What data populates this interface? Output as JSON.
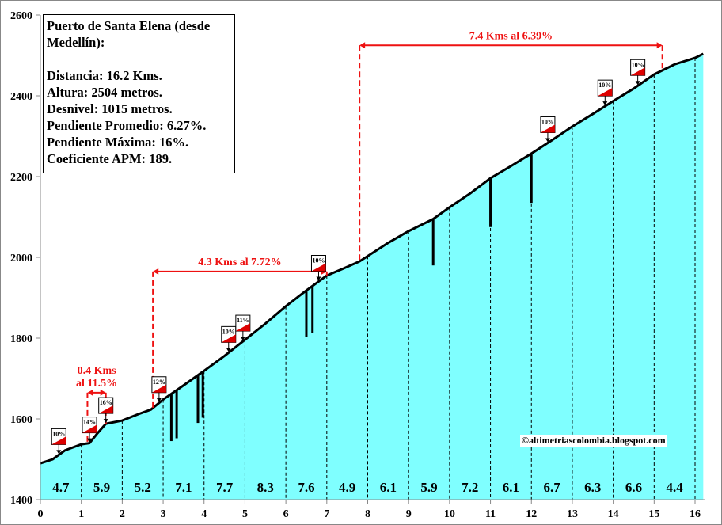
{
  "chart_data": {
    "type": "area",
    "title": "Puerto de Santa Elena (desde Medellín):",
    "info_lines": [
      "Distancia: 16.2 Kms.",
      "Altura:  2504 metros.",
      "Desnivel: 1015 metros.",
      "Pendiente Promedio: 6.27%.",
      "Pendiente Máxima: 16%.",
      "Coeficiente APM: 189."
    ],
    "xlabel": "",
    "ylabel": "",
    "xlim": [
      0,
      16.2
    ],
    "ylim": [
      1400,
      2600
    ],
    "x_ticks": [
      0,
      1,
      2,
      3,
      4,
      5,
      6,
      7,
      8,
      9,
      10,
      11,
      12,
      13,
      14,
      15,
      16
    ],
    "y_ticks": [
      1400,
      1600,
      1800,
      2000,
      2200,
      2400,
      2600
    ],
    "profile": {
      "x": [
        0,
        0.3,
        0.6,
        1,
        1.2,
        1.4,
        1.6,
        2,
        2.4,
        2.7,
        3,
        3.5,
        4,
        4.5,
        5,
        5.5,
        6,
        6.5,
        7,
        7.4,
        7.8,
        8.5,
        9,
        9.6,
        10,
        10.5,
        11,
        11.5,
        12,
        12.5,
        13,
        13.5,
        14,
        14.5,
        15,
        15.5,
        16,
        16.2
      ],
      "elevation": [
        1490,
        1500,
        1522,
        1537,
        1540,
        1565,
        1588,
        1596,
        1612,
        1623,
        1648,
        1683,
        1719,
        1756,
        1796,
        1836,
        1879,
        1918,
        1955,
        1972,
        1990,
        2036,
        2065,
        2095,
        2124,
        2158,
        2196,
        2226,
        2257,
        2290,
        2324,
        2355,
        2387,
        2418,
        2453,
        2478,
        2494,
        2504
      ]
    },
    "segments": [
      {
        "km": 0,
        "grade": "4.7"
      },
      {
        "km": 1,
        "grade": "5.9"
      },
      {
        "km": 2,
        "grade": "5.2"
      },
      {
        "km": 3,
        "grade": "7.1"
      },
      {
        "km": 4,
        "grade": "7.7"
      },
      {
        "km": 5,
        "grade": "8.3"
      },
      {
        "km": 6,
        "grade": "7.6"
      },
      {
        "km": 7,
        "grade": "4.9"
      },
      {
        "km": 8,
        "grade": "6.1"
      },
      {
        "km": 9,
        "grade": "5.9"
      },
      {
        "km": 10,
        "grade": "7.2"
      },
      {
        "km": 11,
        "grade": "6.1"
      },
      {
        "km": 12,
        "grade": "6.7"
      },
      {
        "km": 13,
        "grade": "6.3"
      },
      {
        "km": 14,
        "grade": "6.6"
      },
      {
        "km": 15,
        "grade": "4.4"
      }
    ],
    "spikes": [
      {
        "x": 3.2,
        "bottom": 1545
      },
      {
        "x": 3.33,
        "bottom": 1552
      },
      {
        "x": 3.85,
        "bottom": 1590
      },
      {
        "x": 3.97,
        "bottom": 1603
      },
      {
        "x": 6.5,
        "bottom": 1802
      },
      {
        "x": 6.65,
        "bottom": 1812
      },
      {
        "x": 9.6,
        "bottom": 1980
      },
      {
        "x": 11,
        "bottom": 2075
      },
      {
        "x": 12,
        "bottom": 2135
      }
    ],
    "grade_markers": [
      {
        "x": 0.45,
        "label": "10%"
      },
      {
        "x": 1.2,
        "label": "14%"
      },
      {
        "x": 1.6,
        "label": "16%"
      },
      {
        "x": 2.9,
        "label": "12%"
      },
      {
        "x": 4.6,
        "label": "10%"
      },
      {
        "x": 4.95,
        "label": "11%"
      },
      {
        "x": 6.8,
        "label": "10%"
      },
      {
        "x": 12.4,
        "label": "10%"
      },
      {
        "x": 13.8,
        "label": "10%"
      },
      {
        "x": 14.6,
        "label": "10%"
      }
    ],
    "climbs": [
      {
        "x0": 1.15,
        "x1": 1.6,
        "arrow_y": 1665,
        "label_lines": [
          "0.4 Kms",
          "al 11.5%"
        ]
      },
      {
        "x0": 2.75,
        "x1": 7.0,
        "arrow_y": 1965,
        "label_lines": [
          "4.3 Kms al 7.72%"
        ]
      },
      {
        "x0": 7.8,
        "x1": 15.2,
        "arrow_y": 2525,
        "label_lines": [
          "7.4 Kms al 6.39%"
        ]
      }
    ],
    "credit": "©altimetriascolombia.blogspot.com",
    "colors": {
      "fill": "#7fffff",
      "line": "#000000",
      "climb": "#ee1111",
      "marker_red": "#dd0000"
    }
  }
}
